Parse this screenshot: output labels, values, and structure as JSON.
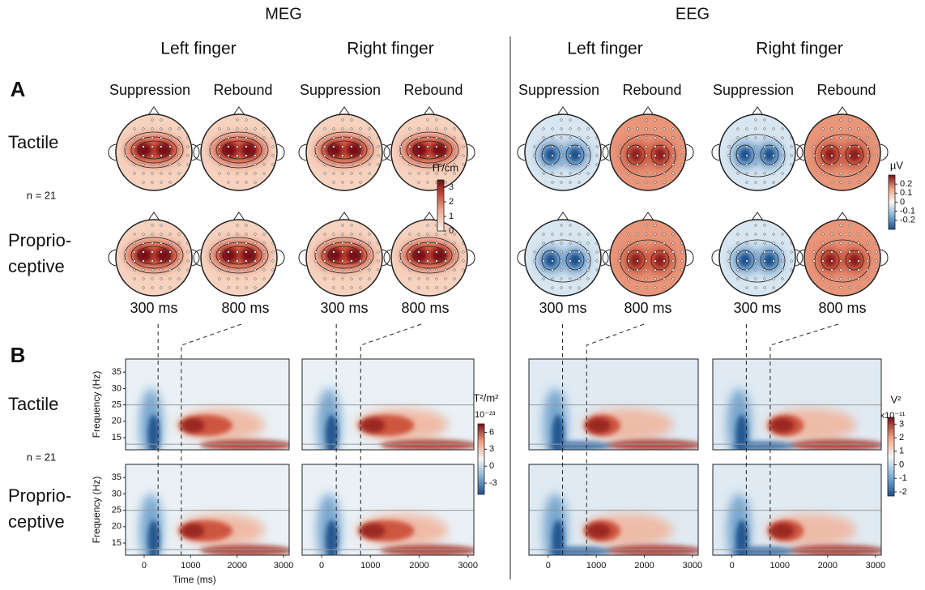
{
  "panel_labels": [
    "A",
    "B"
  ],
  "modalities": [
    {
      "name": "MEG",
      "conditions": [
        "Left finger",
        "Right finger"
      ]
    },
    {
      "name": "EEG",
      "conditions": [
        "Left finger",
        "Right finger"
      ]
    }
  ],
  "phases": [
    "Suppression",
    "Rebound"
  ],
  "stimuli": [
    [
      "Tactile"
    ],
    [
      "Proprio-",
      "ceptive"
    ]
  ],
  "sample_size": "n = 21",
  "latencies": {
    "values": [
      300,
      800
    ],
    "labels": [
      "300 ms",
      "800 ms"
    ]
  },
  "topo_colorbars": [
    {
      "unit": "fT/cm",
      "lim": [
        0,
        3.5
      ],
      "ticks": [
        0,
        1,
        2,
        3
      ]
    },
    {
      "unit": "µV",
      "lim": [
        -0.3,
        0.3
      ],
      "ticks": [
        0.2,
        0.1,
        0,
        -0.1,
        -0.2
      ]
    }
  ],
  "tf_colorbars": [
    {
      "unit": "T²/m²",
      "scale": "x10⁻²³",
      "lim": [
        -5,
        7.5
      ],
      "ticks": [
        6,
        3,
        0,
        -3
      ]
    },
    {
      "unit": "V²",
      "scale": "x10⁻¹¹",
      "lim": [
        -2.3,
        3.5
      ],
      "ticks": [
        3,
        2,
        1,
        0,
        -1,
        -2
      ]
    }
  ],
  "tf_axes": {
    "xlabel": "Time (ms)",
    "ylabel": "Frequency (Hz)",
    "xlim": [
      -400,
      3120
    ],
    "ylim": [
      11.3,
      39
    ],
    "xticks": [
      0,
      1000,
      2000,
      3000
    ],
    "yticks": [
      15,
      20,
      25,
      30,
      35
    ]
  }
}
